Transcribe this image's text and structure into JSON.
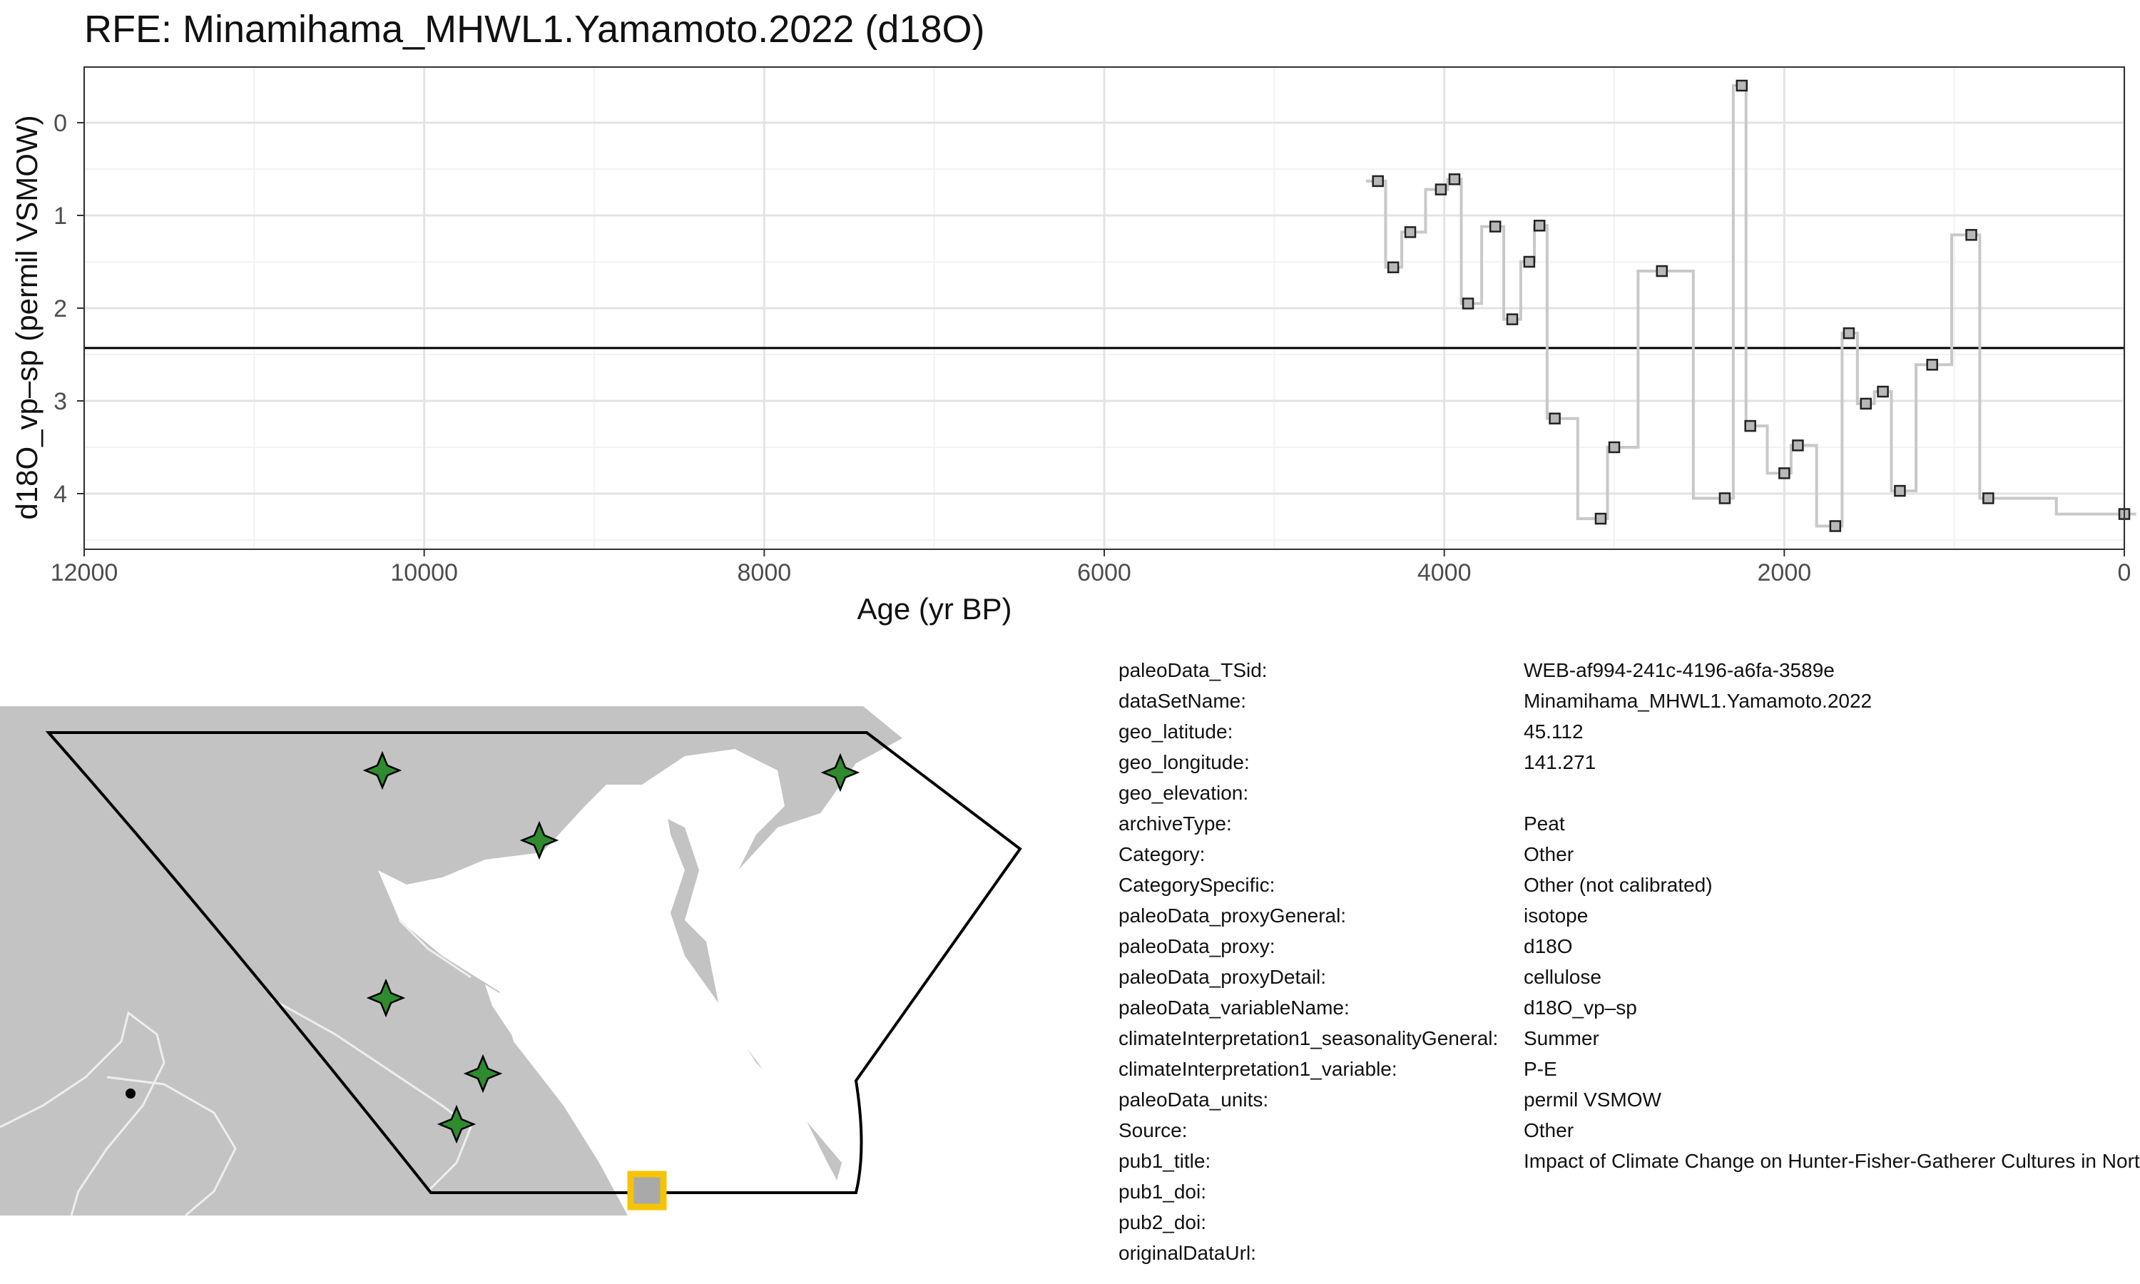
{
  "chart_data": {
    "type": "line",
    "title": "RFE: Minamihama_MHWL1.Yamamoto.2022 (d18O)",
    "xlabel": "Age (yr BP)",
    "ylabel": "d18O_vp–sp (permil VSMOW)",
    "xlim": [
      12000,
      0
    ],
    "ylim": [
      4.6,
      -0.6
    ],
    "y_reversed": true,
    "x_reversed": true,
    "xticks": [
      12000,
      10000,
      8000,
      6000,
      4000,
      2000,
      0
    ],
    "xtick_labels": [
      "12000",
      "10000",
      "8000",
      "6000",
      "4000",
      "2000",
      "0"
    ],
    "yticks": [
      0,
      1,
      2,
      3,
      4
    ],
    "ytick_labels": [
      "0",
      "1",
      "2",
      "3",
      "4"
    ],
    "grid": true,
    "reference_line_y": 2.43,
    "line_style": "step",
    "series": [
      {
        "x": [
          4390,
          4300,
          4200,
          4020,
          3940,
          3860,
          3700,
          3600,
          3500,
          3440,
          3350,
          3080,
          3000,
          2720,
          2350,
          2250,
          2200,
          2000,
          1920,
          1700,
          1620,
          1520,
          1420,
          1320,
          1130,
          900,
          800,
          0
        ],
        "y": [
          0.63,
          1.56,
          1.18,
          0.72,
          0.61,
          1.95,
          1.12,
          2.12,
          1.5,
          1.11,
          3.19,
          4.27,
          3.5,
          1.6,
          4.05,
          -0.4,
          3.27,
          3.78,
          3.48,
          4.35,
          2.27,
          3.03,
          2.9,
          3.97,
          2.61,
          1.21,
          4.05,
          4.22
        ]
      }
    ]
  },
  "metadata": [
    {
      "key": "paleoData_TSid:",
      "value": "WEB-af994-241c-4196-a6fa-3589e"
    },
    {
      "key": "dataSetName:",
      "value": "Minamihama_MHWL1.Yamamoto.2022"
    },
    {
      "key": "geo_latitude:",
      "value": "45.112"
    },
    {
      "key": "geo_longitude:",
      "value": "141.271"
    },
    {
      "key": "geo_elevation:",
      "value": ""
    },
    {
      "key": "archiveType:",
      "value": "Peat"
    },
    {
      "key": "Category:",
      "value": "Other"
    },
    {
      "key": "CategorySpecific:",
      "value": "Other (not calibrated)"
    },
    {
      "key": "paleoData_proxyGeneral:",
      "value": "isotope"
    },
    {
      "key": "paleoData_proxy:",
      "value": "d18O"
    },
    {
      "key": "paleoData_proxyDetail:",
      "value": "cellulose"
    },
    {
      "key": "paleoData_variableName:",
      "value": "d18O_vp–sp"
    },
    {
      "key": "climateInterpretation1_seasonalityGeneral:",
      "value": "Summer"
    },
    {
      "key": "climateInterpretation1_variable:",
      "value": "P-E"
    },
    {
      "key": "paleoData_units:",
      "value": "permil VSMOW"
    },
    {
      "key": "Source:",
      "value": "Other"
    },
    {
      "key": "pub1_title:",
      "value": "Impact of Climate Change on Hunter-Fisher-Gatherer Cultures in Northern Japan"
    },
    {
      "key": "pub1_doi:",
      "value": ""
    },
    {
      "key": "pub2_doi:",
      "value": ""
    },
    {
      "key": "originalDataUrl:",
      "value": ""
    }
  ],
  "map": {
    "colors": {
      "land": "#c3c3c3",
      "sea": "#ffffff",
      "border": "#e6e6e6",
      "frame": "#000000",
      "site_marker": "#2e8b2e",
      "target_marker_fill": "#a9a9a9",
      "target_marker_edge": "#f5c400"
    },
    "site_icon": "star-4-point-icon",
    "target_icon": "square-site-icon"
  }
}
